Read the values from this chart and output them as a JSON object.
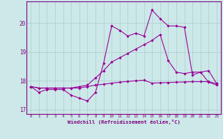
{
  "xlabel": "Windchill (Refroidissement éolien,°C)",
  "x": [
    0,
    1,
    2,
    3,
    4,
    5,
    6,
    7,
    8,
    9,
    10,
    11,
    12,
    13,
    14,
    15,
    16,
    17,
    18,
    19,
    20,
    21,
    22,
    23
  ],
  "line1": [
    17.8,
    17.6,
    17.7,
    17.7,
    17.7,
    17.5,
    17.4,
    17.3,
    17.6,
    18.6,
    19.9,
    19.75,
    19.55,
    19.65,
    19.55,
    20.45,
    20.15,
    19.9,
    19.9,
    19.85,
    18.2,
    18.3,
    17.95,
    17.85
  ],
  "line2": [
    17.8,
    17.75,
    17.75,
    17.75,
    17.75,
    17.75,
    17.75,
    17.8,
    17.85,
    17.88,
    17.92,
    17.95,
    17.98,
    18.0,
    18.02,
    17.92,
    17.93,
    17.94,
    17.95,
    17.96,
    17.97,
    17.97,
    17.97,
    17.9
  ],
  "line3": [
    17.8,
    17.75,
    17.75,
    17.75,
    17.75,
    17.75,
    17.8,
    17.85,
    18.1,
    18.35,
    18.65,
    18.8,
    18.95,
    19.1,
    19.25,
    19.4,
    19.6,
    18.7,
    18.3,
    18.25,
    18.3,
    18.3,
    18.35,
    17.9
  ],
  "line_color": "#990099",
  "bg_color": "#cce8e8",
  "grid_color": "#aacece",
  "text_color": "#800080",
  "ylim": [
    16.85,
    20.75
  ],
  "yticks": [
    17,
    18,
    19,
    20
  ],
  "marker": "D",
  "markersize": 2.2,
  "linewidth": 0.8
}
